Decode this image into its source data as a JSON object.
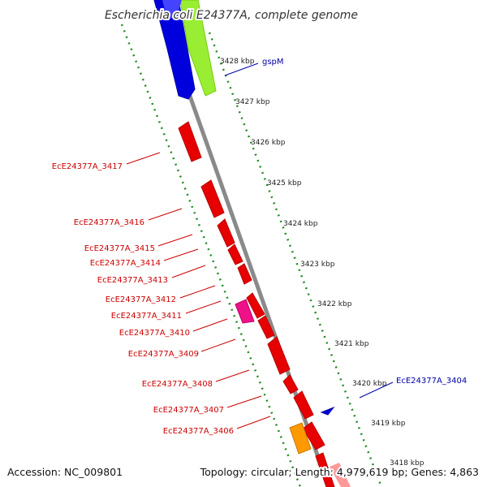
{
  "title": "Escherichia coli E24377A, complete genome",
  "footer": {
    "accession": "Accession: NC_009801",
    "summary": "Topology: circular; Length: 4,979,619 bp; Genes: 4,863"
  },
  "colors": {
    "backbone": "#8a8a8a",
    "ticks": "#228b22",
    "reverse_gene": "#e60000",
    "forward_gene": "#0000dd",
    "rna_gene": "#99ee33",
    "pink_gene": "#ee1188",
    "orange_gene": "#ff9900",
    "reverse_label": "#cc0000",
    "forward_label": "#0000aa"
  },
  "kbp_labels": [
    "3428 kbp",
    "3427 kbp",
    "3426 kbp",
    "3425 kbp",
    "3424 kbp",
    "3423 kbp",
    "3422 kbp",
    "3421 kbp",
    "3420 kbp",
    "3419 kbp",
    "3418 kbp"
  ],
  "forward_labels": [
    "gspM",
    "EcE24377A_3404"
  ],
  "reverse_labels": [
    "EcE24377A_3417",
    "EcE24377A_3416",
    "EcE24377A_3415",
    "EcE24377A_3414",
    "EcE24377A_3413",
    "EcE24377A_3412",
    "EcE24377A_3411",
    "EcE24377A_3410",
    "EcE24377A_3409",
    "EcE24377A_3408",
    "EcE24377A_3407",
    "EcE24377A_3406"
  ]
}
